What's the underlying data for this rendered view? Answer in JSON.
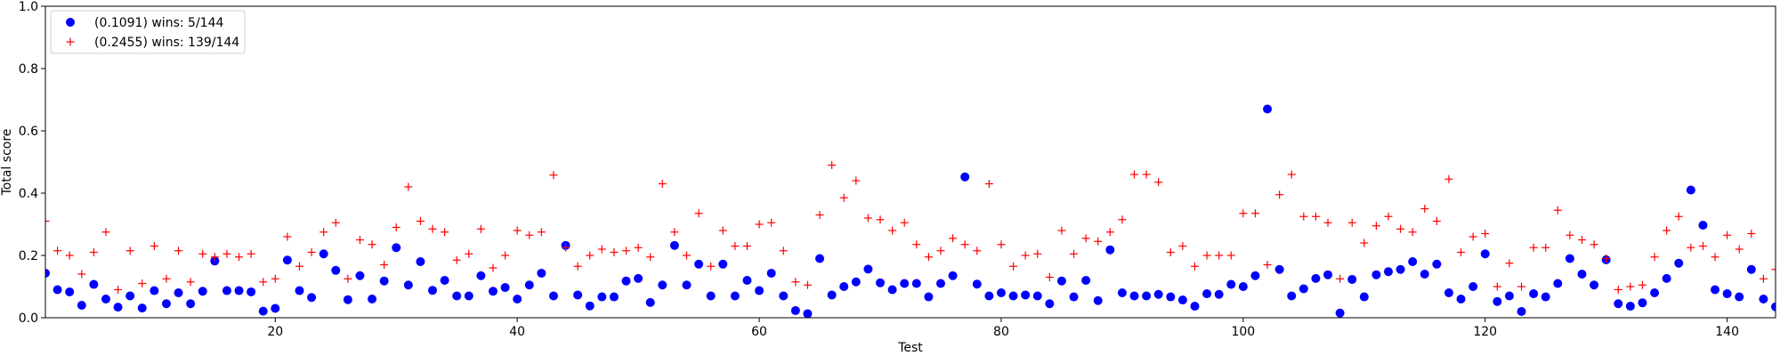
{
  "chart_data": {
    "type": "scatter",
    "title": "",
    "xlabel": "Test",
    "ylabel": "Total score",
    "xlim": [
      1,
      144
    ],
    "ylim": [
      0,
      1.0
    ],
    "x_ticks": [
      20,
      40,
      60,
      80,
      100,
      120,
      140
    ],
    "y_ticks": [
      0.0,
      0.2,
      0.4,
      0.6,
      0.8,
      1.0
    ],
    "x_tick_labels": [
      "20",
      "40",
      "60",
      "80",
      "100",
      "120",
      "140"
    ],
    "y_tick_labels": [
      "0.0",
      "0.2",
      "0.4",
      "0.6",
      "0.8",
      "1.0"
    ],
    "grid": false,
    "legend_position": "top-left",
    "series": [
      {
        "name": "(0.1091) wins: 5/144",
        "marker": "circle",
        "color": "#0000ff",
        "x": [
          1,
          2,
          3,
          4,
          5,
          6,
          7,
          8,
          9,
          10,
          11,
          12,
          13,
          14,
          15,
          16,
          17,
          18,
          19,
          20,
          21,
          22,
          23,
          24,
          25,
          26,
          27,
          28,
          29,
          30,
          31,
          32,
          33,
          34,
          35,
          36,
          37,
          38,
          39,
          40,
          41,
          42,
          43,
          44,
          45,
          46,
          47,
          48,
          49,
          50,
          51,
          52,
          53,
          54,
          55,
          56,
          57,
          58,
          59,
          60,
          61,
          62,
          63,
          64,
          65,
          66,
          67,
          68,
          69,
          70,
          71,
          72,
          73,
          74,
          75,
          76,
          77,
          78,
          79,
          80,
          81,
          82,
          83,
          84,
          85,
          86,
          87,
          88,
          89,
          90,
          91,
          92,
          93,
          94,
          95,
          96,
          97,
          98,
          99,
          100,
          101,
          102,
          103,
          104,
          105,
          106,
          107,
          108,
          109,
          110,
          111,
          112,
          113,
          114,
          115,
          116,
          117,
          118,
          119,
          120,
          121,
          122,
          123,
          124,
          125,
          126,
          127,
          128,
          129,
          130,
          131,
          132,
          133,
          134,
          135,
          136,
          137,
          138,
          139,
          140,
          141,
          142,
          143,
          144
        ],
        "y": [
          0.143,
          0.09,
          0.083,
          0.04,
          0.107,
          0.06,
          0.034,
          0.07,
          0.031,
          0.087,
          0.045,
          0.08,
          0.045,
          0.085,
          0.182,
          0.087,
          0.087,
          0.083,
          0.021,
          0.03,
          0.185,
          0.087,
          0.065,
          0.205,
          0.152,
          0.058,
          0.135,
          0.06,
          0.118,
          0.225,
          0.105,
          0.18,
          0.088,
          0.12,
          0.07,
          0.07,
          0.135,
          0.085,
          0.097,
          0.06,
          0.105,
          0.143,
          0.07,
          0.232,
          0.073,
          0.038,
          0.067,
          0.067,
          0.118,
          0.126,
          0.049,
          0.105,
          0.232,
          0.105,
          0.172,
          0.07,
          0.172,
          0.07,
          0.12,
          0.087,
          0.143,
          0.07,
          0.023,
          0.013,
          0.19,
          0.073,
          0.1,
          0.115,
          0.156,
          0.112,
          0.09,
          0.11,
          0.11,
          0.067,
          0.11,
          0.135,
          0.452,
          0.108,
          0.07,
          0.08,
          0.07,
          0.073,
          0.07,
          0.045,
          0.118,
          0.067,
          0.12,
          0.055,
          0.218,
          0.08,
          0.07,
          0.07,
          0.075,
          0.067,
          0.057,
          0.037,
          0.077,
          0.075,
          0.107,
          0.1,
          0.135,
          0.67,
          0.155,
          0.07,
          0.093,
          0.126,
          0.138,
          0.015,
          0.123,
          0.067,
          0.138,
          0.148,
          0.155,
          0.18,
          0.14,
          0.172,
          0.08,
          0.06,
          0.1,
          0.205,
          0.052,
          0.07,
          0.02,
          0.077,
          0.067,
          0.11,
          0.19,
          0.14,
          0.105,
          0.186,
          0.045,
          0.037,
          0.048,
          0.08,
          0.126,
          0.175,
          0.41,
          0.297,
          0.09,
          0.077,
          0.067,
          0.155,
          0.06,
          0.035
        ]
      },
      {
        "name": "(0.2455) wins: 139/144",
        "marker": "plus",
        "color": "#ff0000",
        "x": [
          1,
          2,
          3,
          4,
          5,
          6,
          7,
          8,
          9,
          10,
          11,
          12,
          13,
          14,
          15,
          16,
          17,
          18,
          19,
          20,
          21,
          22,
          23,
          24,
          25,
          26,
          27,
          28,
          29,
          30,
          31,
          32,
          33,
          34,
          35,
          36,
          37,
          38,
          39,
          40,
          41,
          42,
          43,
          44,
          45,
          46,
          47,
          48,
          49,
          50,
          51,
          52,
          53,
          54,
          55,
          56,
          57,
          58,
          59,
          60,
          61,
          62,
          63,
          64,
          65,
          66,
          67,
          68,
          69,
          70,
          71,
          72,
          73,
          74,
          75,
          76,
          77,
          78,
          79,
          80,
          81,
          82,
          83,
          84,
          85,
          86,
          87,
          88,
          89,
          90,
          91,
          92,
          93,
          94,
          95,
          96,
          97,
          98,
          99,
          100,
          101,
          102,
          103,
          104,
          105,
          106,
          107,
          108,
          109,
          110,
          111,
          112,
          113,
          114,
          115,
          116,
          117,
          118,
          119,
          120,
          121,
          122,
          123,
          124,
          125,
          126,
          127,
          128,
          129,
          130,
          131,
          132,
          133,
          134,
          135,
          136,
          137,
          138,
          139,
          140,
          141,
          142,
          143,
          144
        ],
        "y": [
          0.31,
          0.215,
          0.2,
          0.14,
          0.21,
          0.275,
          0.09,
          0.215,
          0.11,
          0.23,
          0.125,
          0.215,
          0.115,
          0.205,
          0.195,
          0.205,
          0.195,
          0.205,
          0.115,
          0.125,
          0.26,
          0.165,
          0.21,
          0.275,
          0.305,
          0.125,
          0.25,
          0.235,
          0.17,
          0.29,
          0.42,
          0.31,
          0.285,
          0.275,
          0.185,
          0.205,
          0.285,
          0.16,
          0.2,
          0.28,
          0.265,
          0.275,
          0.458,
          0.225,
          0.165,
          0.2,
          0.22,
          0.21,
          0.215,
          0.225,
          0.195,
          0.43,
          0.275,
          0.2,
          0.335,
          0.165,
          0.28,
          0.23,
          0.23,
          0.3,
          0.305,
          0.215,
          0.115,
          0.105,
          0.33,
          0.49,
          0.385,
          0.44,
          0.32,
          0.315,
          0.28,
          0.305,
          0.235,
          0.195,
          0.215,
          0.255,
          0.235,
          0.215,
          0.43,
          0.235,
          0.165,
          0.2,
          0.205,
          0.13,
          0.28,
          0.205,
          0.255,
          0.245,
          0.275,
          0.315,
          0.46,
          0.46,
          0.435,
          0.21,
          0.23,
          0.165,
          0.2,
          0.2,
          0.2,
          0.335,
          0.335,
          0.17,
          0.395,
          0.46,
          0.325,
          0.325,
          0.305,
          0.125,
          0.305,
          0.24,
          0.295,
          0.325,
          0.285,
          0.275,
          0.35,
          0.31,
          0.445,
          0.21,
          0.26,
          0.27,
          0.1,
          0.175,
          0.1,
          0.225,
          0.225,
          0.345,
          0.265,
          0.25,
          0.235,
          0.19,
          0.09,
          0.1,
          0.105,
          0.195,
          0.28,
          0.325,
          0.225,
          0.23,
          0.195,
          0.265,
          0.22,
          0.27,
          0.125,
          0.155
        ]
      }
    ]
  }
}
